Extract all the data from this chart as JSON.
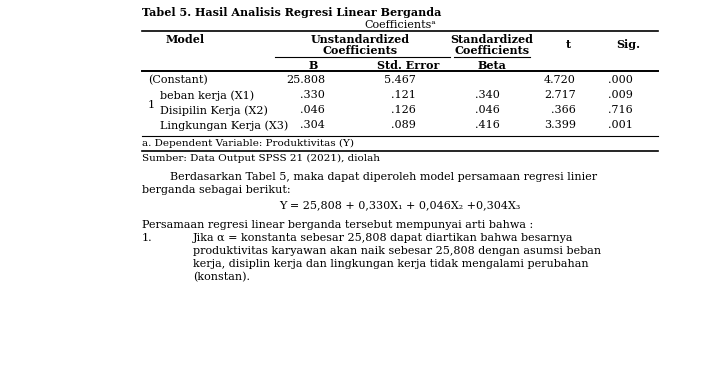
{
  "title": "Tabel 5. Hasil Analisis Regresi Linear Berganda",
  "table_subtitle": "Coefficientsᵃ",
  "col_group1_line1": "Unstandardized",
  "col_group1_line2": "Coefficients",
  "col_group2_line1": "Standardized",
  "col_group2_line2": "Coefficients",
  "subhdr_B": "B",
  "subhdr_SE": "Std. Error",
  "subhdr_Beta": "Beta",
  "subhdr_t": "t",
  "subhdr_Sig": "Sig.",
  "subhdr_Model": "Model",
  "rows": [
    [
      "(Constant)",
      "25.808",
      "5.467",
      "",
      "4.720",
      ".000"
    ],
    [
      "beban kerja (X1)",
      ".330",
      ".121",
      ".340",
      "2.717",
      ".009"
    ],
    [
      "Disipilin Kerja (X2)",
      ".046",
      ".126",
      ".046",
      ".366",
      ".716"
    ],
    [
      "Lingkungan Kerja (X3)",
      ".304",
      ".089",
      ".416",
      "3.399",
      ".001"
    ]
  ],
  "row_label": "1",
  "footnote_a": "a. Dependent Variable: Produktivitas (Y)",
  "source": "Sumber: Data Output SPSS 21 (2021), diolah",
  "para1_indent": "        Berdasarkan Tabel 5, maka dapat diperoleh model persamaan regresi linier",
  "para1_line2": "berganda sebagai berikut:",
  "formula": "Y = 25,808 + 0,330X₁ + 0,046X₂ +0,304X₃",
  "para2_intro": "Persamaan regresi linear berganda tersebut mempunyai arti bahwa :",
  "para2_num": "1.",
  "para2_line1": "Jika α = konstanta sebesar 25,808 dapat diartikan bahwa besarnya",
  "para2_line2": "produktivitas karyawan akan naik sebesar 25,808 dengan asumsi beban",
  "para2_line3": "kerja, disiplin kerja dan lingkungan kerja tidak mengalami perubahan",
  "para2_line4": "(konstan).",
  "bg_color": "#ffffff",
  "text_color": "#000000"
}
